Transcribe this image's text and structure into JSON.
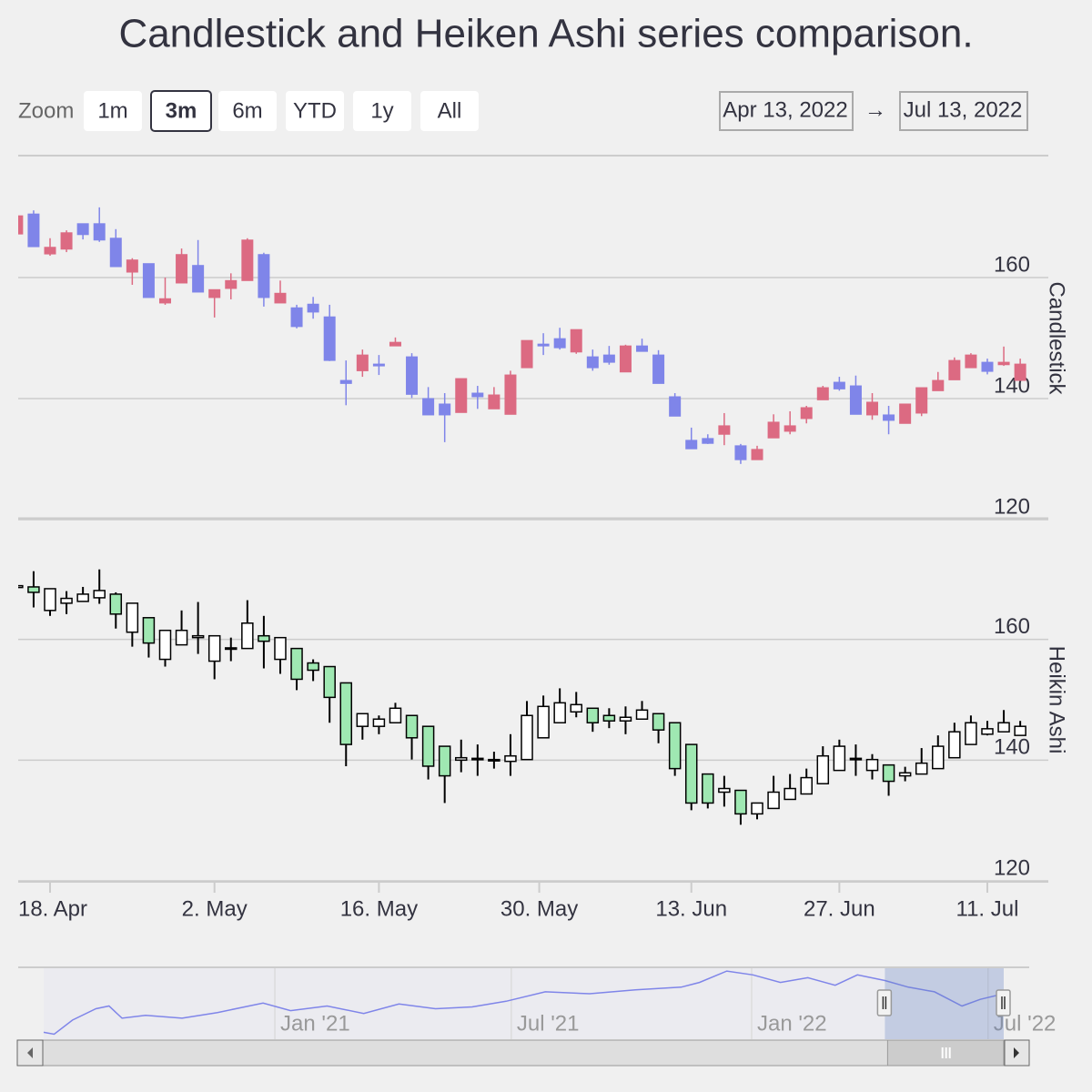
{
  "range_selector": {
    "label": "Zoom",
    "buttons": [
      "1m",
      "3m",
      "6m",
      "YTD",
      "1y",
      "All"
    ],
    "selected": 1,
    "from": "Apr 13, 2022",
    "arrow": "→",
    "to": "Jul 13, 2022"
  },
  "chart_data": {
    "type": "stock",
    "title": "Candlestick and Heiken Ashi series comparison.",
    "x": [
      "2022-04-13",
      "2022-04-14",
      "2022-04-18",
      "2022-04-19",
      "2022-04-20",
      "2022-04-21",
      "2022-04-22",
      "2022-04-25",
      "2022-04-26",
      "2022-04-27",
      "2022-04-28",
      "2022-04-29",
      "2022-05-02",
      "2022-05-03",
      "2022-05-04",
      "2022-05-05",
      "2022-05-06",
      "2022-05-09",
      "2022-05-10",
      "2022-05-11",
      "2022-05-12",
      "2022-05-13",
      "2022-05-16",
      "2022-05-17",
      "2022-05-18",
      "2022-05-19",
      "2022-05-20",
      "2022-05-23",
      "2022-05-24",
      "2022-05-25",
      "2022-05-26",
      "2022-05-27",
      "2022-05-31",
      "2022-06-01",
      "2022-06-02",
      "2022-06-03",
      "2022-06-06",
      "2022-06-07",
      "2022-06-08",
      "2022-06-09",
      "2022-06-10",
      "2022-06-13",
      "2022-06-14",
      "2022-06-15",
      "2022-06-16",
      "2022-06-17",
      "2022-06-21",
      "2022-06-22",
      "2022-06-23",
      "2022-06-24",
      "2022-06-27",
      "2022-06-28",
      "2022-06-29",
      "2022-06-30",
      "2022-07-01",
      "2022-07-05",
      "2022-07-06",
      "2022-07-07",
      "2022-07-08",
      "2022-07-11",
      "2022-07-12",
      "2022-07-13"
    ],
    "xticks": [
      {
        "value": "2022-04-18",
        "label": "18. Apr"
      },
      {
        "value": "2022-05-02",
        "label": "2. May"
      },
      {
        "value": "2022-05-16",
        "label": "16. May"
      },
      {
        "value": "2022-05-30",
        "label": "30. May"
      },
      {
        "value": "2022-06-13",
        "label": "13. Jun"
      },
      {
        "value": "2022-06-27",
        "label": "27. Jun"
      },
      {
        "value": "2022-07-11",
        "label": "11. Jul"
      }
    ],
    "panes": [
      {
        "type": "candlestick",
        "name": "Candlestick",
        "ylim": [
          120,
          180
        ],
        "yticks": [
          120,
          140,
          160
        ],
        "up_color": "#dc6a82",
        "down_color": "#7f85e9",
        "open": [
          167.2,
          170.5,
          163.9,
          164.7,
          168.9,
          168.9,
          166.5,
          160.9,
          162.3,
          155.8,
          159.1,
          162.0,
          156.7,
          158.2,
          159.5,
          163.8,
          155.8,
          155.0,
          155.6,
          153.5,
          143.0,
          144.6,
          145.7,
          148.7,
          146.9,
          140.0,
          139.1,
          137.7,
          140.9,
          138.3,
          137.4,
          145.1,
          149.0,
          149.9,
          147.7,
          146.9,
          147.2,
          144.4,
          148.7,
          147.2,
          140.3,
          133.1,
          133.4,
          134.1,
          132.2,
          129.9,
          133.5,
          134.6,
          136.7,
          139.8,
          142.7,
          142.1,
          137.3,
          137.3,
          135.9,
          137.6,
          141.3,
          143.1,
          145.1,
          146.0,
          145.6,
          143.0
        ],
        "high": [
          170.2,
          171.1,
          166.5,
          167.8,
          168.9,
          171.6,
          168.0,
          163.2,
          162.3,
          160.0,
          164.8,
          166.2,
          158.0,
          160.7,
          166.5,
          164.1,
          159.5,
          155.5,
          156.8,
          155.5,
          146.3,
          148.1,
          147.2,
          150.1,
          147.5,
          141.9,
          140.9,
          143.3,
          142.1,
          141.9,
          144.6,
          149.6,
          150.8,
          151.7,
          151.4,
          148.1,
          148.7,
          148.9,
          149.9,
          148.0,
          140.9,
          135.2,
          134.1,
          137.6,
          132.5,
          132.2,
          137.4,
          137.9,
          138.8,
          142.1,
          143.6,
          143.8,
          140.9,
          138.8,
          139.1,
          141.8,
          144.4,
          146.8,
          147.5,
          146.6,
          148.6,
          146.6
        ],
        "low": [
          167.2,
          165.1,
          163.6,
          164.2,
          166.3,
          165.9,
          161.8,
          158.8,
          156.7,
          155.5,
          159.1,
          157.6,
          153.4,
          156.4,
          159.5,
          155.2,
          155.8,
          151.6,
          153.2,
          146.2,
          138.9,
          143.6,
          143.9,
          148.7,
          140.1,
          137.3,
          132.8,
          137.7,
          138.3,
          138.3,
          137.4,
          145.1,
          147.2,
          148.1,
          147.4,
          144.6,
          145.6,
          144.4,
          147.8,
          142.5,
          137.1,
          131.7,
          132.5,
          132.3,
          129.2,
          129.9,
          133.5,
          134.1,
          135.9,
          139.8,
          141.3,
          137.4,
          136.5,
          134.1,
          135.9,
          137.1,
          141.3,
          143.1,
          145.1,
          144.0,
          145.4,
          143.0
        ],
        "close": [
          170.2,
          165.1,
          165.0,
          167.4,
          167.1,
          166.2,
          161.8,
          162.9,
          156.7,
          156.5,
          163.8,
          157.6,
          158.0,
          159.5,
          166.2,
          156.7,
          157.4,
          151.9,
          154.3,
          146.3,
          142.5,
          147.2,
          145.4,
          149.3,
          140.7,
          137.3,
          137.3,
          143.3,
          140.3,
          140.6,
          143.9,
          149.6,
          148.7,
          148.4,
          151.4,
          145.1,
          146.0,
          148.7,
          147.8,
          142.5,
          137.1,
          131.7,
          132.6,
          135.5,
          129.9,
          131.6,
          136.1,
          135.5,
          138.5,
          141.8,
          141.6,
          137.4,
          139.4,
          136.4,
          139.1,
          141.8,
          143.0,
          146.3,
          147.2,
          144.5,
          146.0,
          145.7
        ]
      },
      {
        "type": "heikinashi",
        "name": "Heikin Ashi",
        "ylim": [
          120,
          180
        ],
        "yticks": [
          120,
          140,
          160
        ],
        "up_color": "#ffffff",
        "down_color": "#9fe8b2",
        "line_color": "#000000",
        "open": [
          168.6,
          168.7,
          164.8,
          166.0,
          166.3,
          166.9,
          167.5,
          161.2,
          163.6,
          156.7,
          159.1,
          160.3,
          156.4,
          158.5,
          158.5,
          160.6,
          156.7,
          158.5,
          156.1,
          155.5,
          152.8,
          145.6,
          145.6,
          146.2,
          147.4,
          145.6,
          142.3,
          140.0,
          140.1,
          140.0,
          139.8,
          140.1,
          143.7,
          146.2,
          148.0,
          148.6,
          147.4,
          146.5,
          146.8,
          147.7,
          146.2,
          142.6,
          137.7,
          134.7,
          135.0,
          131.1,
          132.0,
          133.5,
          134.4,
          136.1,
          138.3,
          140.1,
          138.3,
          139.2,
          137.4,
          137.7,
          138.6,
          140.4,
          142.6,
          144.3,
          144.7,
          144.1
        ],
        "high": [
          168.9,
          171.3,
          168.4,
          168.0,
          168.7,
          171.6,
          167.8,
          166.0,
          163.6,
          161.5,
          164.8,
          166.2,
          160.6,
          160.3,
          166.5,
          163.9,
          160.3,
          158.5,
          156.7,
          155.5,
          152.8,
          147.7,
          147.4,
          149.5,
          147.4,
          145.6,
          142.3,
          143.4,
          142.6,
          141.4,
          144.3,
          149.8,
          150.7,
          151.9,
          151.3,
          148.6,
          148.6,
          148.9,
          149.8,
          147.7,
          146.2,
          142.6,
          137.7,
          137.4,
          135.0,
          132.9,
          137.4,
          137.7,
          138.6,
          142.3,
          143.4,
          142.6,
          141.0,
          139.2,
          138.9,
          142.0,
          144.1,
          146.2,
          147.4,
          146.5,
          148.3,
          146.5
        ],
        "low": [
          168.6,
          165.3,
          163.9,
          164.2,
          166.3,
          165.9,
          161.8,
          158.8,
          157.0,
          155.5,
          159.1,
          157.6,
          153.4,
          156.4,
          158.5,
          155.2,
          154.3,
          151.6,
          153.1,
          146.2,
          139.0,
          143.4,
          144.3,
          146.2,
          140.1,
          136.8,
          132.9,
          138.0,
          137.4,
          138.6,
          137.4,
          140.1,
          143.7,
          146.2,
          147.1,
          144.7,
          145.3,
          144.3,
          146.8,
          142.8,
          137.4,
          131.7,
          132.0,
          132.3,
          129.3,
          130.2,
          132.0,
          133.5,
          134.4,
          136.1,
          138.3,
          137.4,
          136.8,
          134.1,
          136.5,
          137.7,
          138.6,
          140.4,
          142.6,
          144.1,
          144.7,
          144.1
        ],
        "close": [
          168.9,
          167.8,
          168.4,
          166.8,
          167.5,
          168.1,
          164.2,
          166.0,
          159.4,
          161.5,
          161.5,
          160.6,
          160.6,
          158.6,
          162.7,
          159.7,
          160.3,
          153.4,
          154.9,
          150.4,
          142.6,
          147.7,
          146.8,
          148.6,
          143.7,
          139.0,
          137.4,
          140.4,
          140.3,
          140.1,
          140.7,
          147.4,
          148.9,
          149.5,
          149.2,
          146.2,
          146.5,
          147.1,
          148.3,
          145.0,
          138.6,
          132.9,
          132.9,
          135.3,
          131.1,
          132.9,
          134.7,
          135.3,
          137.1,
          140.7,
          142.3,
          140.3,
          140.1,
          136.5,
          137.9,
          139.5,
          142.3,
          144.7,
          146.2,
          145.2,
          146.2,
          145.6
        ]
      }
    ],
    "navigator": {
      "type": "line",
      "color": "#7f85e9",
      "x": [
        "2020-07-08",
        "2020-07-16",
        "2020-07-30",
        "2020-08-17",
        "2020-08-27",
        "2020-09-06",
        "2020-09-24",
        "2020-10-22",
        "2020-11-18",
        "2020-12-23",
        "2021-01-13",
        "2021-02-10",
        "2021-03-10",
        "2021-04-06",
        "2021-05-04",
        "2021-06-01",
        "2021-06-27",
        "2021-07-27",
        "2021-08-30",
        "2021-10-04",
        "2021-11-08",
        "2021-11-22",
        "2021-12-13",
        "2022-01-02",
        "2022-01-23",
        "2022-02-13",
        "2022-03-06",
        "2022-03-23",
        "2022-04-13",
        "2022-05-01",
        "2022-05-21",
        "2022-06-11",
        "2022-06-25",
        "2022-07-13"
      ],
      "values": [
        95.0,
        92.5,
        110.8,
        125.5,
        129.1,
        113.3,
        116.9,
        113.3,
        120.6,
        132.8,
        123.0,
        129.1,
        119.4,
        131.6,
        125.5,
        127.9,
        135.2,
        147.4,
        145.0,
        149.9,
        153.5,
        159.6,
        174.3,
        169.4,
        159.6,
        165.7,
        156.0,
        169.4,
        162.1,
        153.5,
        147.4,
        129.1,
        137.7,
        145.0
      ],
      "xlim": [
        "2020-07-08",
        "2022-07-13"
      ],
      "ylim": [
        86,
        178
      ],
      "xticks": [
        {
          "value": "2021-01-01",
          "label": "Jan '21"
        },
        {
          "value": "2021-07-01",
          "label": "Jul '21"
        },
        {
          "value": "2022-01-01",
          "label": "Jan '22"
        },
        {
          "value": "2022-07-01",
          "label": "Jul '22"
        }
      ]
    }
  }
}
